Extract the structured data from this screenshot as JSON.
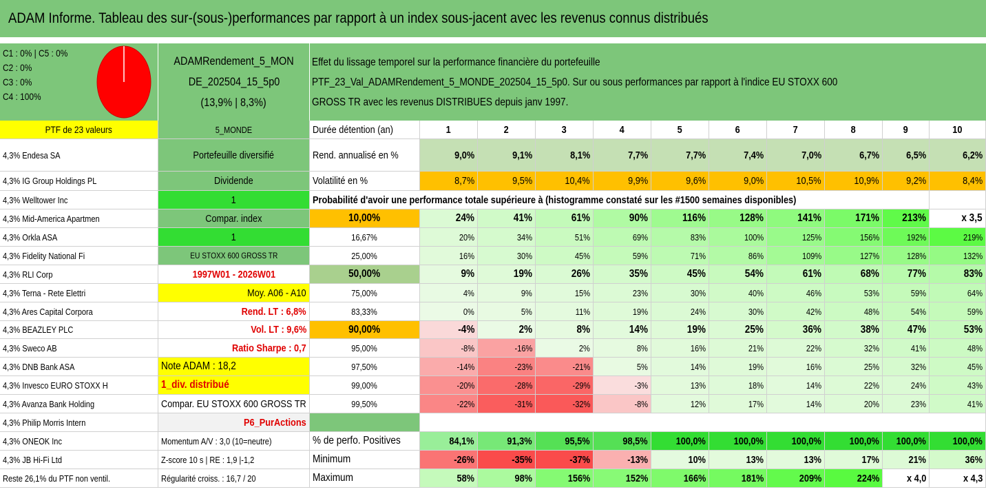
{
  "title": "ADAM Informe. Tableau des sur-(sous-)performances par rapport à un index sous-jacent avec les revenus connus distribués",
  "colors": {
    "header_green": "#7dc67a",
    "light_green": "#c5e0b4",
    "orange": "#ffc000",
    "yellow": "#ffff00",
    "bright_green": "#33dd33",
    "red_text": "#e00000",
    "pie_red": "#ff0000"
  },
  "legend": {
    "line1": "C1 : 0% | C5 : 0%",
    "line2": "C2 : 0%",
    "line3": "C3 : 0%",
    "line4": "C4 : 100%"
  },
  "pie": {
    "c4_share": 100
  },
  "portfolio_name": {
    "line1": "ADAMRendement_5_MON",
    "line2": "DE_202504_15_5p0",
    "line3": "(13,9% | 8,3%)"
  },
  "description": {
    "line1": "Effet du lissage temporel sur la performance financière du portefeuille",
    "line2": "PTF_23_Val_ADAMRendement_5_MONDE_202504_15_5p0. Sur ou sous performances par rapport à l'indice EU STOXX 600",
    "line3": "GROSS TR avec les revenus DISTRIBUES depuis janv 1997."
  },
  "ptf_label": "PTF de 23 valeurs",
  "ptf_code": "5_MONDE",
  "duration_label": "Durée détention (an)",
  "years": [
    "1",
    "2",
    "3",
    "4",
    "5",
    "6",
    "7",
    "8",
    "9",
    "10"
  ],
  "holdings": [
    "4,3% Endesa SA",
    "4,3% IG Group Holdings PL",
    "4,3% Welltower Inc",
    "4,3% Mid-America Apartmen",
    "4,3% Orkla ASA",
    "4,3% Fidelity National Fi",
    "4,3% RLI Corp",
    "4,3% Terna - Rete Elettri",
    "4,3% Ares Capital Corpora",
    "4,3% BEAZLEY PLC",
    "4,3% Sweco AB",
    "4,3% DNB Bank ASA",
    "4,3% Invesco EURO STOXX H",
    "4,3% Avanza Bank Holding",
    "4,3% Philip Morris Intern",
    "4,3% ONEOK Inc",
    "4,3% JB Hi-Fi Ltd",
    "Reste 26,1% du PTF non ventil."
  ],
  "info": [
    "Portefeuille diversifié",
    "Dividende",
    "1",
    "Compar. index",
    "1",
    "EU STOXX 600 GROSS TR",
    "1997W01 - 2026W01",
    "Moy. A06 - A10",
    "Rend. LT : 6,8%",
    "Vol. LT : 9,6%",
    "Ratio Sharpe : 0,7",
    "Note ADAM : 18,2",
    "1_div. distribué",
    "Compar. EU STOXX 600 GROSS TR",
    "P6_PurActions",
    "Momentum A/V : 3,0 (10=neutre)",
    "Z-score 10 s | RE : 1,9 |-1,2",
    "Régularité croiss. : 16,7 / 20"
  ],
  "rend": {
    "label": "Rend. annualisé en %",
    "values": [
      "9,0%",
      "9,1%",
      "8,1%",
      "7,7%",
      "7,7%",
      "7,4%",
      "7,0%",
      "6,7%",
      "6,5%",
      "6,2%"
    ]
  },
  "vol": {
    "label": "Volatilité en %",
    "values": [
      "8,7%",
      "9,5%",
      "10,4%",
      "9,9%",
      "9,6%",
      "9,0%",
      "10,5%",
      "10,9%",
      "9,2%",
      "8,4%"
    ]
  },
  "prob_title": "Probabilité d'avoir une performance totale supérieure à (histogramme constaté sur les #1500 semaines disponibles)",
  "prob_rows": [
    {
      "p": "10,00%",
      "v": [
        "24%",
        "41%",
        "61%",
        "90%",
        "116%",
        "128%",
        "141%",
        "171%",
        "213%",
        "x 3,5"
      ]
    },
    {
      "p": "16,67%",
      "v": [
        "20%",
        "34%",
        "51%",
        "69%",
        "83%",
        "100%",
        "125%",
        "156%",
        "192%",
        "219%"
      ]
    },
    {
      "p": "25,00%",
      "v": [
        "16%",
        "30%",
        "45%",
        "59%",
        "71%",
        "86%",
        "109%",
        "127%",
        "128%",
        "132%"
      ]
    },
    {
      "p": "50,00%",
      "v": [
        "9%",
        "19%",
        "26%",
        "35%",
        "45%",
        "54%",
        "61%",
        "68%",
        "77%",
        "83%"
      ]
    },
    {
      "p": "75,00%",
      "v": [
        "4%",
        "9%",
        "15%",
        "23%",
        "30%",
        "40%",
        "46%",
        "53%",
        "59%",
        "64%"
      ]
    },
    {
      "p": "83,33%",
      "v": [
        "0%",
        "5%",
        "11%",
        "19%",
        "24%",
        "30%",
        "42%",
        "48%",
        "54%",
        "59%"
      ]
    },
    {
      "p": "90,00%",
      "v": [
        "-4%",
        "2%",
        "8%",
        "14%",
        "19%",
        "25%",
        "36%",
        "38%",
        "47%",
        "53%"
      ]
    },
    {
      "p": "95,00%",
      "v": [
        "-8%",
        "-16%",
        "2%",
        "8%",
        "16%",
        "21%",
        "22%",
        "32%",
        "41%",
        "48%"
      ]
    },
    {
      "p": "97,50%",
      "v": [
        "-14%",
        "-23%",
        "-21%",
        "5%",
        "14%",
        "19%",
        "16%",
        "25%",
        "32%",
        "45%"
      ]
    },
    {
      "p": "99,00%",
      "v": [
        "-20%",
        "-28%",
        "-29%",
        "-3%",
        "13%",
        "18%",
        "14%",
        "22%",
        "24%",
        "43%"
      ]
    },
    {
      "p": "99,50%",
      "v": [
        "-22%",
        "-31%",
        "-32%",
        "-8%",
        "12%",
        "17%",
        "14%",
        "20%",
        "23%",
        "41%"
      ]
    }
  ],
  "pos": {
    "label": "% de perfo. Positives",
    "values": [
      "84,1%",
      "91,3%",
      "95,5%",
      "98,5%",
      "100,0%",
      "100,0%",
      "100,0%",
      "100,0%",
      "100,0%",
      "100,0%"
    ]
  },
  "min": {
    "label": "Minimum",
    "values": [
      "-26%",
      "-35%",
      "-37%",
      "-13%",
      "10%",
      "13%",
      "13%",
      "17%",
      "21%",
      "36%"
    ]
  },
  "max": {
    "label": "Maximum",
    "values": [
      "58%",
      "98%",
      "156%",
      "152%",
      "166%",
      "181%",
      "209%",
      "224%",
      "x 4,0",
      "x 4,3"
    ]
  }
}
